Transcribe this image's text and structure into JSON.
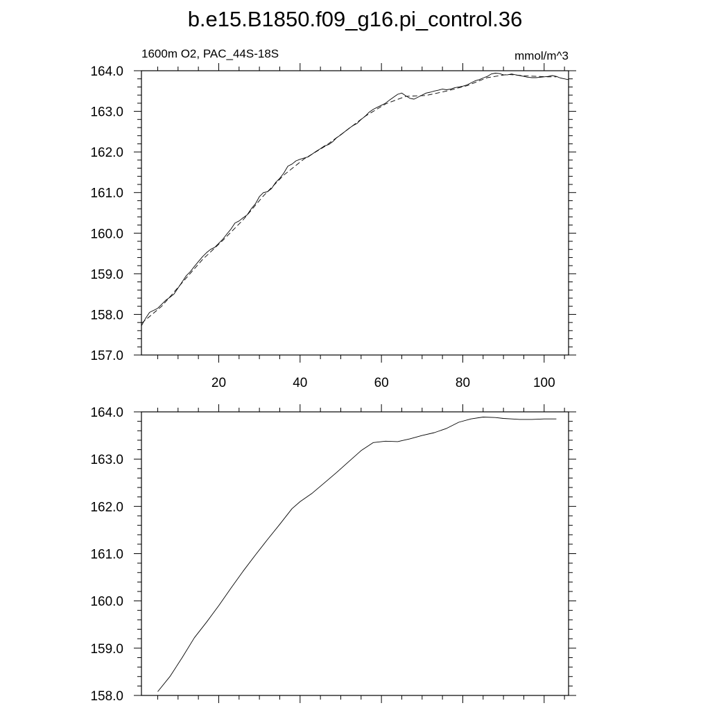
{
  "figure": {
    "title": "b.e15.B1850.f09_g16.pi_control.36",
    "left_string": "1600m O2, PAC_44S-18S",
    "right_string": "mmol/m^3"
  },
  "chart_data": [
    {
      "type": "line",
      "title": "",
      "xlabel": "",
      "ylabel": "",
      "xlim": [
        1,
        106
      ],
      "ylim": [
        157.0,
        164.0
      ],
      "x_ticks": [
        "20",
        "40",
        "60",
        "80",
        "100"
      ],
      "y_ticks": [
        "157.0",
        "158.0",
        "159.0",
        "160.0",
        "161.0",
        "162.0",
        "163.0",
        "164.0"
      ],
      "grid": false,
      "legend": "none",
      "series": [
        {
          "style": "solid",
          "x": [
            1,
            2,
            3,
            4,
            5,
            6,
            7,
            8,
            9,
            10,
            11,
            12,
            13,
            14,
            15,
            16,
            17,
            18,
            19,
            20,
            21,
            22,
            23,
            24,
            25,
            26,
            27,
            28,
            29,
            30,
            31,
            32,
            33,
            34,
            35,
            36,
            37,
            38,
            39,
            40,
            41,
            42,
            43,
            44,
            45,
            46,
            47,
            48,
            49,
            50,
            51,
            52,
            53,
            54,
            55,
            56,
            57,
            58,
            59,
            60,
            61,
            62,
            63,
            64,
            65,
            66,
            67,
            68,
            69,
            70,
            71,
            72,
            73,
            74,
            75,
            76,
            77,
            78,
            79,
            80,
            81,
            82,
            83,
            84,
            85,
            86,
            87,
            88,
            89,
            90,
            91,
            92,
            93,
            94,
            95,
            96,
            97,
            98,
            99,
            100,
            101,
            102,
            103,
            104,
            105,
            106
          ],
          "y": [
            157.72,
            157.9,
            158.05,
            158.1,
            158.15,
            158.25,
            158.35,
            158.42,
            158.5,
            158.65,
            158.8,
            158.95,
            159.05,
            159.18,
            159.3,
            159.42,
            159.52,
            159.6,
            159.65,
            159.75,
            159.85,
            159.98,
            160.1,
            160.25,
            160.3,
            160.38,
            160.45,
            160.6,
            160.72,
            160.9,
            161.0,
            161.02,
            161.1,
            161.25,
            161.35,
            161.48,
            161.65,
            161.7,
            161.78,
            161.82,
            161.85,
            161.88,
            161.95,
            162.02,
            162.08,
            162.15,
            162.18,
            162.25,
            162.35,
            162.42,
            162.5,
            162.58,
            162.65,
            162.7,
            162.8,
            162.88,
            162.98,
            163.05,
            163.1,
            163.15,
            163.2,
            163.28,
            163.35,
            163.42,
            163.45,
            163.38,
            163.32,
            163.3,
            163.35,
            163.4,
            163.45,
            163.47,
            163.5,
            163.52,
            163.55,
            163.53,
            163.55,
            163.58,
            163.6,
            163.62,
            163.65,
            163.7,
            163.75,
            163.78,
            163.82,
            163.86,
            163.92,
            163.94,
            163.93,
            163.9,
            163.9,
            163.92,
            163.9,
            163.88,
            163.86,
            163.84,
            163.83,
            163.83,
            163.84,
            163.85,
            163.86,
            163.88,
            163.86,
            163.82,
            163.8,
            163.78
          ]
        },
        {
          "style": "dashed",
          "x": [
            1,
            6,
            11,
            16,
            21,
            26,
            31,
            36,
            41,
            46,
            51,
            56,
            61,
            66,
            71,
            76,
            81,
            86,
            91,
            96,
            101,
            103
          ],
          "y": [
            157.78,
            158.2,
            158.78,
            159.35,
            159.82,
            160.33,
            160.92,
            161.43,
            161.83,
            162.13,
            162.5,
            162.88,
            163.18,
            163.37,
            163.39,
            163.5,
            163.63,
            163.83,
            163.91,
            163.87,
            163.85,
            163.85
          ]
        }
      ]
    },
    {
      "type": "line",
      "title": "",
      "xlabel": "",
      "ylabel": "",
      "xlim": [
        1,
        106
      ],
      "ylim": [
        158.0,
        164.0
      ],
      "y_ticks": [
        "158.0",
        "159.0",
        "160.0",
        "161.0",
        "162.0",
        "163.0",
        "164.0"
      ],
      "grid": false,
      "legend": "none",
      "series": [
        {
          "style": "solid",
          "x": [
            5,
            8,
            11,
            14,
            17,
            20,
            23,
            26,
            29,
            32,
            35,
            38,
            40,
            43,
            46,
            49,
            52,
            55,
            58,
            61,
            64,
            67,
            70,
            73,
            76,
            79,
            82,
            85,
            88,
            90,
            92,
            94,
            97,
            100,
            103
          ],
          "y": [
            158.08,
            158.4,
            158.8,
            159.22,
            159.55,
            159.9,
            160.27,
            160.63,
            160.97,
            161.3,
            161.62,
            161.95,
            162.1,
            162.28,
            162.5,
            162.72,
            162.95,
            163.18,
            163.35,
            163.38,
            163.37,
            163.43,
            163.5,
            163.56,
            163.65,
            163.78,
            163.85,
            163.89,
            163.88,
            163.86,
            163.85,
            163.84,
            163.84,
            163.85,
            163.85
          ]
        }
      ]
    }
  ]
}
